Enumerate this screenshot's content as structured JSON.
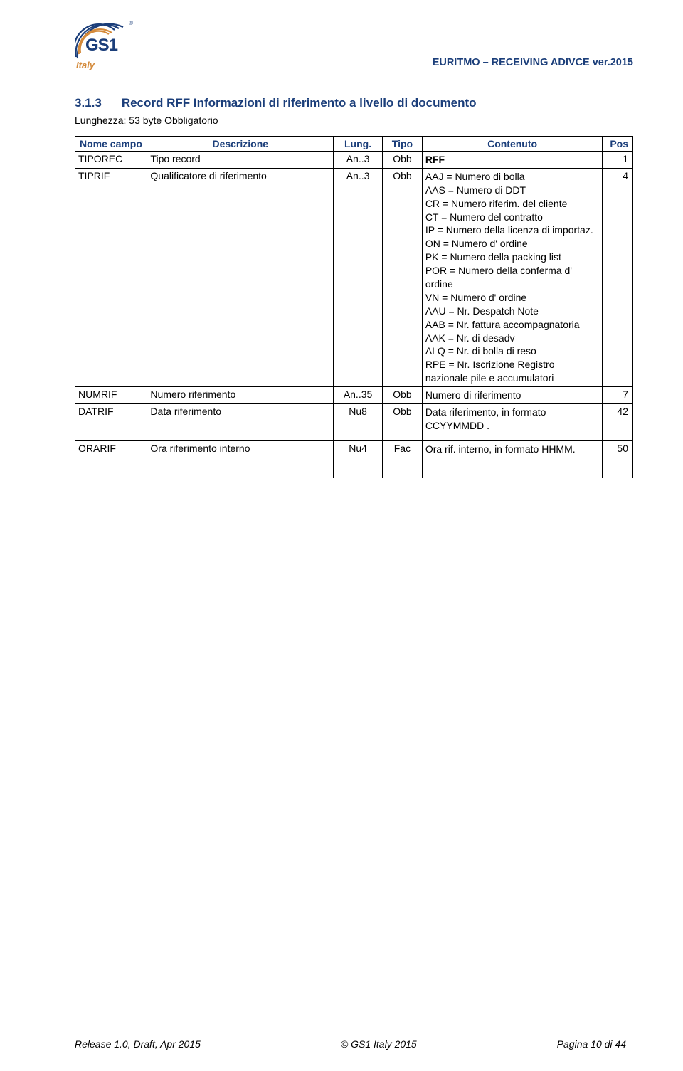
{
  "header": {
    "doc_title": "EURITMO – RECEIVING ADIVCE ver.2015",
    "logo": {
      "gs1": "GS1",
      "italy": "Italy",
      "reg": "®"
    }
  },
  "section": {
    "number": "3.1.3",
    "title": "Record RFF Informazioni di riferimento a livello di documento",
    "subtitle": "Lunghezza: 53 byte Obbligatorio"
  },
  "table": {
    "headers": {
      "nome": "Nome campo",
      "desc": "Descrizione",
      "lung": "Lung.",
      "tipo": "Tipo",
      "cont": "Contenuto",
      "pos": "Pos"
    },
    "rows": [
      {
        "nome": "TIPOREC",
        "desc": "Tipo record",
        "lung": "An..3",
        "tipo": "Obb",
        "cont": "RFF",
        "cont_bold": true,
        "pos": "1"
      },
      {
        "nome": "TIPRIF",
        "desc": "Qualificatore di riferimento",
        "lung": "An..3",
        "tipo": "Obb",
        "cont_lines": [
          "AAJ = Numero di bolla",
          "AAS = Numero di DDT",
          "CR = Numero riferim. del cliente",
          "CT = Numero del contratto",
          "IP = Numero della licenza di importaz.",
          "ON = Numero d' ordine",
          "PK = Numero della packing list",
          "POR = Numero della conferma d' ordine",
          "VN = Numero d' ordine",
          "AAU = Nr. Despatch Note",
          "AAB = Nr. fattura accompagnatoria",
          "AAK = Nr. di desadv",
          "ALQ = Nr. di bolla di reso",
          "RPE = Nr. Iscrizione Registro nazionale pile e accumulatori"
        ],
        "pos": "4"
      },
      {
        "nome": "NUMRIF",
        "desc": "Numero riferimento",
        "lung": "An..35",
        "tipo": "Obb",
        "cont": "Numero di  riferimento",
        "pos": "7"
      },
      {
        "nome": "DATRIF",
        "desc": "Data riferimento",
        "lung": "Nu8",
        "tipo": "Obb",
        "cont": "Data riferimento, in formato CCYYMMDD .",
        "pos": "42",
        "tall": true
      },
      {
        "nome": "ORARIF",
        "desc": "Ora riferimento interno",
        "lung": "Nu4",
        "tipo": "Fac",
        "cont": "Ora rif. interno, in formato HHMM.",
        "pos": "50",
        "tall": true
      }
    ]
  },
  "footer": {
    "left": "Release 1.0, Draft, Apr 2015",
    "center": "© GS1 Italy 2015",
    "right": "Pagina 10 di 44"
  },
  "colors": {
    "heading": "#1b3e7a",
    "orange": "#d48a3a",
    "text": "#000000",
    "background": "#ffffff"
  }
}
